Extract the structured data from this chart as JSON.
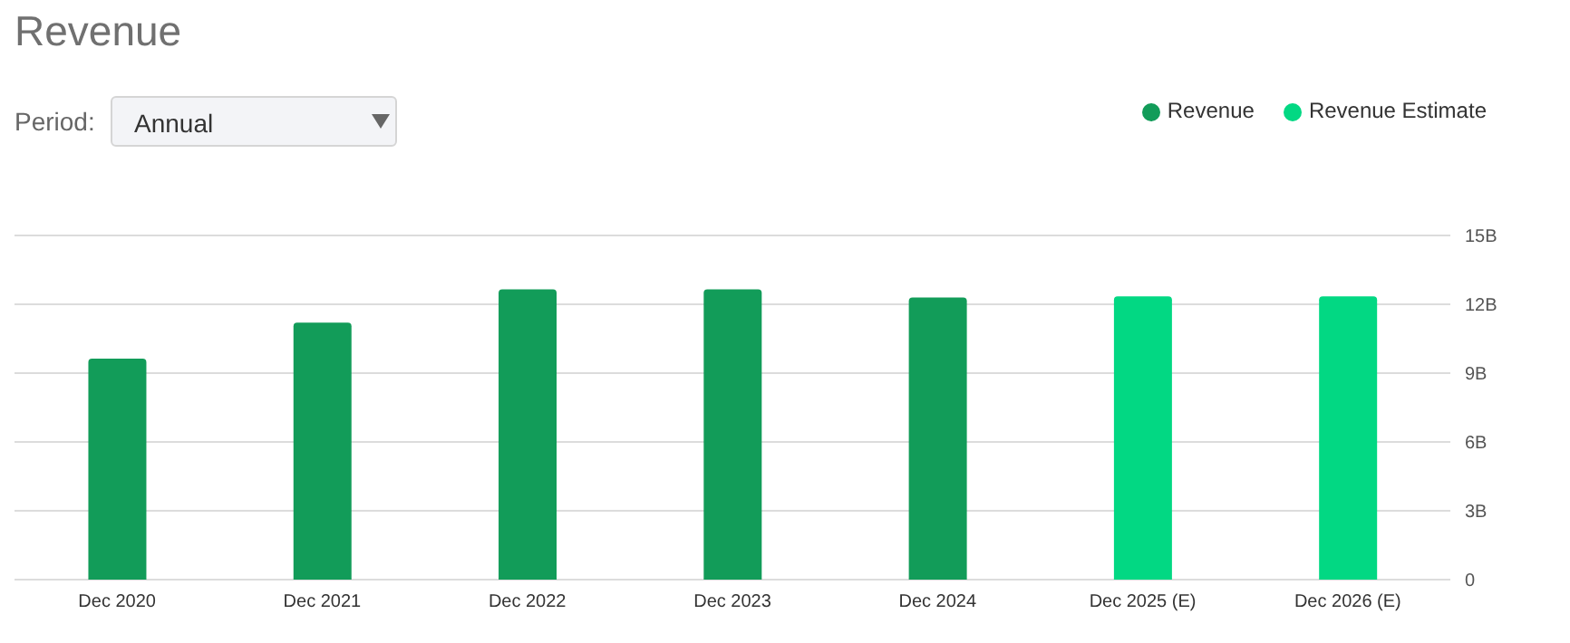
{
  "chart_data": {
    "type": "bar",
    "title": "Revenue",
    "annotations": [
      "Period:",
      "Annual"
    ],
    "categories": [
      "Dec 2020",
      "Dec 2021",
      "Dec 2022",
      "Dec 2023",
      "Dec 2024",
      "Dec 2025 (E)",
      "Dec 2026 (E)"
    ],
    "series": [
      {
        "name": "Revenue",
        "color": "#129c59",
        "values": [
          9.63,
          11.2,
          12.65,
          12.65,
          12.3,
          null,
          null
        ]
      },
      {
        "name": "Revenue Estimate",
        "color": "#02d883",
        "values": [
          null,
          null,
          null,
          null,
          null,
          12.35,
          12.35
        ]
      }
    ],
    "stacked": true,
    "ylim": [
      0,
      15
    ],
    "yticks": [
      0,
      {
        "value": 3,
        "label": "3B"
      },
      {
        "value": 6,
        "label": "6B"
      },
      {
        "value": 9,
        "label": "9B"
      },
      {
        "value": 12,
        "label": "12B"
      },
      {
        "value": 15,
        "label": "15B"
      }
    ],
    "grid": "y",
    "legend": "top right"
  }
}
